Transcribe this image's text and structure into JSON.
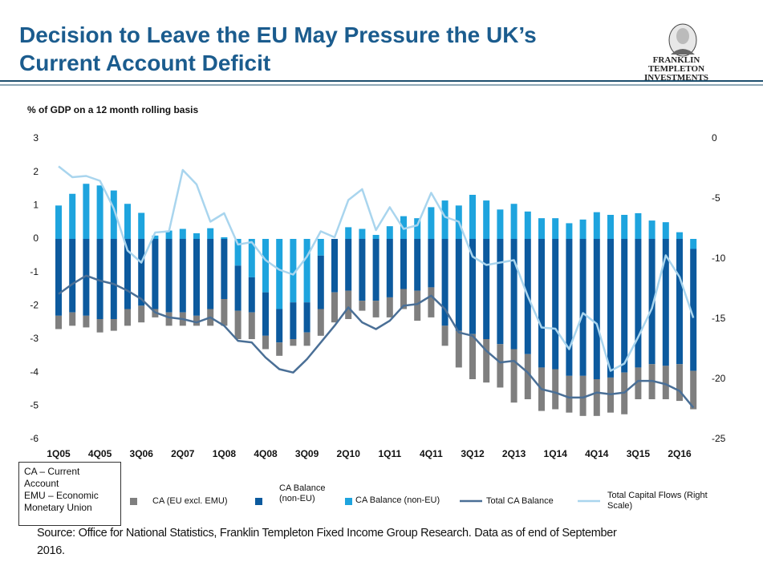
{
  "chart_data": {
    "type": "bar",
    "title": "Decision to Leave the EU May Pressure the UK’s Current Account Deficit",
    "brand": [
      "FRANKLIN TEMPLETON",
      "INVESTMENTS"
    ],
    "subtitle": "% of GDP on a 12 month rolling basis",
    "note": [
      "CA – Current",
      "Account",
      "EMU – Economic",
      "Monetary Union"
    ],
    "source": "Source: Office for National Statistics,  Franklin Templeton Fixed Income Group Research. Data as of end of September 2016.",
    "categories": [
      "1Q05",
      null,
      null,
      "4Q05",
      null,
      null,
      "3Q06",
      null,
      null,
      "2Q07",
      null,
      null,
      "1Q08",
      null,
      null,
      "4Q08",
      null,
      null,
      "3Q09",
      null,
      null,
      "2Q10",
      null,
      null,
      "1Q11",
      null,
      null,
      "4Q11",
      null,
      null,
      "3Q12",
      null,
      null,
      "2Q13",
      null,
      null,
      "1Q14",
      null,
      null,
      "4Q14",
      null,
      null,
      "3Q15",
      null,
      null,
      "2Q16",
      null
    ],
    "ylim": [
      -6,
      3
    ],
    "yticks": [
      3,
      2,
      1,
      0,
      -1,
      -2,
      -3,
      -4,
      -5,
      -6
    ],
    "y2lim": [
      -25,
      0
    ],
    "y2ticks": [
      0,
      -5,
      -10,
      -15,
      -20,
      -25
    ],
    "stacked": true,
    "series": [
      {
        "name": "CA (EU excl. EMU)",
        "type": "bar",
        "color": "#7f7f7f",
        "values": [
          -0.4,
          -0.4,
          -0.35,
          -0.4,
          -0.35,
          -0.5,
          -0.5,
          -0.25,
          -0.4,
          -0.4,
          -0.3,
          -0.5,
          -0.8,
          -0.85,
          -0.8,
          -0.4,
          -0.4,
          -0.2,
          -0.4,
          -0.8,
          -0.9,
          -0.85,
          -0.3,
          -0.5,
          -0.6,
          -0.6,
          -0.9,
          -0.9,
          -0.6,
          -1.1,
          -1.35,
          -1.3,
          -1.3,
          -1.6,
          -1.35,
          -1.3,
          -1.2,
          -1.1,
          -1.2,
          -1.1,
          -1.05,
          -1.25,
          -0.95,
          -1.05,
          -1.0,
          -1.1,
          -1.15
        ]
      },
      {
        "name": "CA Balance (non-EU)",
        "type": "bar",
        "color": "#0c5a9e",
        "values": [
          -2.3,
          -2.2,
          -2.3,
          -2.4,
          -2.4,
          -2.1,
          -2.0,
          -2.1,
          -2.2,
          -2.2,
          -2.3,
          -2.1,
          -1.8,
          -1.35,
          -1.05,
          -1.3,
          -1.0,
          -1.1,
          -0.9,
          -1.6,
          -1.6,
          -1.55,
          -1.85,
          -1.85,
          -1.75,
          -1.5,
          -1.55,
          -1.45,
          -2.6,
          -2.75,
          -2.85,
          -3.0,
          -3.15,
          -3.3,
          -3.45,
          -3.85,
          -3.9,
          -4.1,
          -4.1,
          -4.2,
          -4.15,
          -4.0,
          -3.85,
          -3.75,
          -3.8,
          -3.75,
          -3.65
        ]
      },
      {
        "name": "CA Balance (non-EU)",
        "type": "bar",
        "color": "#1ea4de",
        "values": [
          1.0,
          1.35,
          1.65,
          1.6,
          1.45,
          1.05,
          0.78,
          0.1,
          0.25,
          0.3,
          0.17,
          0.32,
          0.05,
          -0.8,
          -1.15,
          -1.6,
          -2.1,
          -1.9,
          -1.9,
          -0.5,
          0,
          0.35,
          0.3,
          0.12,
          0.38,
          0.68,
          0.62,
          0.95,
          1.15,
          1.0,
          1.32,
          1.15,
          0.88,
          1.05,
          0.82,
          0.62,
          0.62,
          0.47,
          0.58,
          0.8,
          0.72,
          0.72,
          0.77,
          0.55,
          0.5,
          0.2,
          -0.3
        ]
      },
      {
        "name": "Total CA Balance",
        "type": "line",
        "color": "#4a6f96",
        "values": [
          -1.65,
          -1.35,
          -1.1,
          -1.25,
          -1.35,
          -1.55,
          -1.8,
          -2.2,
          -2.35,
          -2.4,
          -2.5,
          -2.35,
          -2.6,
          -3.05,
          -3.1,
          -3.55,
          -3.9,
          -4.0,
          -3.6,
          -3.1,
          -2.6,
          -2.05,
          -2.5,
          -2.7,
          -2.45,
          -2.0,
          -1.95,
          -1.7,
          -2.1,
          -2.8,
          -2.9,
          -3.35,
          -3.7,
          -3.65,
          -4.0,
          -4.5,
          -4.6,
          -4.75,
          -4.75,
          -4.6,
          -4.65,
          -4.6,
          -4.25,
          -4.25,
          -4.35,
          -4.55,
          -5.05
        ]
      },
      {
        "name": "Total Capital Flows (Right Scale)",
        "type": "line",
        "axis": "y2",
        "color": "#a9d5ee",
        "values": [
          -2.3,
          -3.2,
          -3.1,
          -3.5,
          -5.8,
          -9.3,
          -10.3,
          -7.8,
          -7.7,
          -2.6,
          -3.8,
          -6.9,
          -6.2,
          -8.8,
          -8.6,
          -10.1,
          -10.9,
          -11.3,
          -9.8,
          -7.7,
          -8.2,
          -5.1,
          -4.2,
          -7.6,
          -5.7,
          -7.5,
          -7.2,
          -4.5,
          -6.5,
          -6.9,
          -9.8,
          -10.5,
          -10.3,
          -10.1,
          -13.1,
          -15.7,
          -15.8,
          -17.5,
          -14.5,
          -15.4,
          -19.3,
          -18.7,
          -16.5,
          -14.1,
          -9.7,
          -11.5,
          -14.9
        ]
      }
    ]
  }
}
